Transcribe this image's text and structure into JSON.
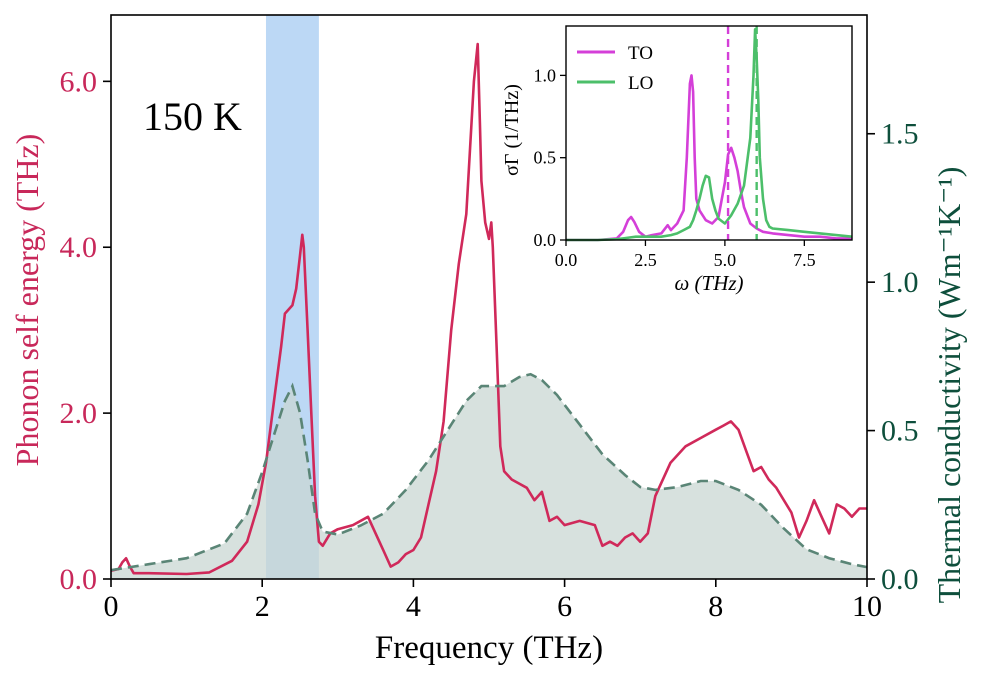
{
  "colors": {
    "self_energy": "#d0295a",
    "conductivity_line": "#5a8576",
    "conductivity_fill": "#c9d7d3",
    "left_axis": "#c8285a",
    "right_axis": "#0e4f3c",
    "highlight_band": "#bcd8f5",
    "inset_to": "#d43fd8",
    "inset_lo": "#4cbf6a"
  },
  "chart_data": [
    {
      "id": "main",
      "type": "line",
      "annotation": "150 K",
      "xlabel": "Frequency (THz)",
      "ylabel_left": "Phonon self energy (THz)",
      "ylabel_right": "Thermal conductivity (Wm⁻¹K⁻¹)",
      "xlim": [
        0,
        10
      ],
      "ylim_left": [
        0,
        6.8
      ],
      "ylim_right": [
        0,
        1.9
      ],
      "x_ticks": [
        0,
        2,
        4,
        6,
        8,
        10
      ],
      "x_tick_labels": [
        "0",
        "2",
        "4",
        "6",
        "8",
        "10"
      ],
      "y_left_ticks": [
        0,
        2,
        4,
        6
      ],
      "y_left_tick_labels": [
        "0.0",
        "2.0",
        "4.0",
        "6.0"
      ],
      "y_right_ticks": [
        0,
        0.5,
        1.0,
        1.5
      ],
      "y_right_tick_labels": [
        "0.0",
        "0.5",
        "1.0",
        "1.5"
      ],
      "highlight_band": [
        2.05,
        2.75
      ],
      "series": [
        {
          "name": "Phonon self energy",
          "axis": "left",
          "style": "solid",
          "x": [
            0,
            0.1,
            0.15,
            0.2,
            0.25,
            0.3,
            0.5,
            1.0,
            1.3,
            1.6,
            1.8,
            1.95,
            2.05,
            2.15,
            2.25,
            2.3,
            2.4,
            2.45,
            2.5,
            2.53,
            2.55,
            2.6,
            2.65,
            2.7,
            2.75,
            2.8,
            2.9,
            3.0,
            3.2,
            3.4,
            3.5,
            3.6,
            3.7,
            3.8,
            3.9,
            4.0,
            4.1,
            4.2,
            4.3,
            4.4,
            4.5,
            4.6,
            4.7,
            4.75,
            4.8,
            4.85,
            4.88,
            4.9,
            4.95,
            5.0,
            5.03,
            5.05,
            5.1,
            5.15,
            5.2,
            5.3,
            5.4,
            5.5,
            5.6,
            5.7,
            5.8,
            5.9,
            6.0,
            6.2,
            6.4,
            6.5,
            6.6,
            6.7,
            6.8,
            6.9,
            7.0,
            7.1,
            7.2,
            7.4,
            7.6,
            7.8,
            8.0,
            8.1,
            8.2,
            8.3,
            8.4,
            8.5,
            8.6,
            8.7,
            8.8,
            9.0,
            9.1,
            9.2,
            9.3,
            9.4,
            9.5,
            9.6,
            9.7,
            9.8,
            9.9,
            10.0
          ],
          "values": [
            0.1,
            0.12,
            0.2,
            0.25,
            0.15,
            0.07,
            0.07,
            0.06,
            0.08,
            0.22,
            0.45,
            0.9,
            1.4,
            2.1,
            2.8,
            3.2,
            3.3,
            3.5,
            3.9,
            4.15,
            4.0,
            3.0,
            2.0,
            1.0,
            0.45,
            0.4,
            0.55,
            0.6,
            0.65,
            0.75,
            0.55,
            0.35,
            0.15,
            0.2,
            0.3,
            0.35,
            0.5,
            0.9,
            1.3,
            1.9,
            3.0,
            3.8,
            4.4,
            5.2,
            6.0,
            6.45,
            5.5,
            4.8,
            4.3,
            4.1,
            4.3,
            4.0,
            2.8,
            1.6,
            1.3,
            1.2,
            1.15,
            1.1,
            0.95,
            1.05,
            0.7,
            0.75,
            0.65,
            0.7,
            0.65,
            0.4,
            0.45,
            0.4,
            0.5,
            0.55,
            0.45,
            0.55,
            1.0,
            1.4,
            1.6,
            1.7,
            1.8,
            1.85,
            1.9,
            1.8,
            1.55,
            1.3,
            1.35,
            1.2,
            1.1,
            0.8,
            0.5,
            0.7,
            0.95,
            0.75,
            0.55,
            0.9,
            0.85,
            0.75,
            0.85,
            0.85
          ]
        },
        {
          "name": "Thermal conductivity",
          "axis": "right",
          "style": "dashed",
          "fill": true,
          "x": [
            0,
            0.5,
            1.0,
            1.5,
            1.8,
            2.0,
            2.2,
            2.3,
            2.4,
            2.5,
            2.6,
            2.7,
            2.8,
            3.0,
            3.3,
            3.6,
            3.9,
            4.2,
            4.5,
            4.7,
            4.9,
            5.2,
            5.4,
            5.55,
            5.7,
            5.9,
            6.2,
            6.5,
            6.8,
            7.0,
            7.2,
            7.5,
            7.8,
            8.0,
            8.3,
            8.6,
            8.9,
            9.2,
            9.5,
            9.8,
            10.0
          ],
          "values": [
            0.03,
            0.05,
            0.07,
            0.12,
            0.22,
            0.36,
            0.52,
            0.6,
            0.65,
            0.56,
            0.4,
            0.22,
            0.16,
            0.15,
            0.18,
            0.22,
            0.3,
            0.4,
            0.52,
            0.6,
            0.65,
            0.65,
            0.68,
            0.69,
            0.67,
            0.62,
            0.52,
            0.42,
            0.35,
            0.31,
            0.3,
            0.31,
            0.33,
            0.33,
            0.3,
            0.25,
            0.17,
            0.1,
            0.07,
            0.05,
            0.04
          ]
        }
      ]
    },
    {
      "id": "inset",
      "type": "line",
      "xlabel": "ω (THz)",
      "ylabel": "σΓ (1/THz)",
      "xlim": [
        0,
        9
      ],
      "ylim": [
        0,
        1.3
      ],
      "x_ticks": [
        0,
        2.5,
        5,
        7.5
      ],
      "x_tick_labels": [
        "0.0",
        "2.5",
        "5.0",
        "7.5"
      ],
      "y_ticks": [
        0,
        0.5,
        1.0
      ],
      "y_tick_labels": [
        "0.0",
        "0.5",
        "1.0"
      ],
      "legend": [
        "TO",
        "LO"
      ],
      "vlines": [
        {
          "series": "TO",
          "x": 5.1
        },
        {
          "series": "LO",
          "x": 6.0
        }
      ],
      "series": [
        {
          "name": "TO",
          "x": [
            0,
            1.0,
            1.6,
            1.8,
            1.95,
            2.05,
            2.15,
            2.3,
            2.5,
            2.7,
            3.0,
            3.2,
            3.3,
            3.5,
            3.7,
            3.8,
            3.9,
            3.95,
            4.0,
            4.05,
            4.1,
            4.2,
            4.4,
            4.6,
            4.8,
            5.0,
            5.1,
            5.2,
            5.3,
            5.4,
            5.5,
            5.6,
            5.8,
            6.0,
            6.2,
            6.5,
            7.0,
            7.5,
            8.0,
            8.5,
            9.0
          ],
          "values": [
            0,
            0,
            0.01,
            0.05,
            0.12,
            0.14,
            0.11,
            0.05,
            0.02,
            0.03,
            0.04,
            0.09,
            0.06,
            0.1,
            0.18,
            0.5,
            0.95,
            1.0,
            0.9,
            0.5,
            0.25,
            0.18,
            0.12,
            0.1,
            0.14,
            0.35,
            0.52,
            0.56,
            0.5,
            0.42,
            0.3,
            0.2,
            0.1,
            0.07,
            0.05,
            0.04,
            0.03,
            0.02,
            0.02,
            0.01,
            0.01
          ]
        },
        {
          "name": "LO",
          "x": [
            0,
            1.0,
            1.6,
            1.8,
            2.0,
            2.2,
            2.5,
            3.0,
            3.3,
            3.5,
            3.7,
            3.9,
            4.0,
            4.1,
            4.2,
            4.3,
            4.4,
            4.5,
            4.6,
            4.7,
            4.8,
            5.0,
            5.2,
            5.4,
            5.6,
            5.8,
            5.9,
            5.95,
            6.0,
            6.05,
            6.1,
            6.2,
            6.3,
            6.4,
            6.5,
            7.0,
            7.5,
            8.0,
            8.5,
            9.0
          ],
          "values": [
            0,
            0,
            0.005,
            0.01,
            0.015,
            0.02,
            0.02,
            0.02,
            0.03,
            0.04,
            0.06,
            0.08,
            0.12,
            0.18,
            0.25,
            0.33,
            0.39,
            0.38,
            0.25,
            0.18,
            0.13,
            0.1,
            0.15,
            0.22,
            0.33,
            0.62,
            1.0,
            1.28,
            1.1,
            0.85,
            0.5,
            0.25,
            0.12,
            0.08,
            0.07,
            0.06,
            0.05,
            0.04,
            0.03,
            0.02
          ]
        }
      ]
    }
  ]
}
